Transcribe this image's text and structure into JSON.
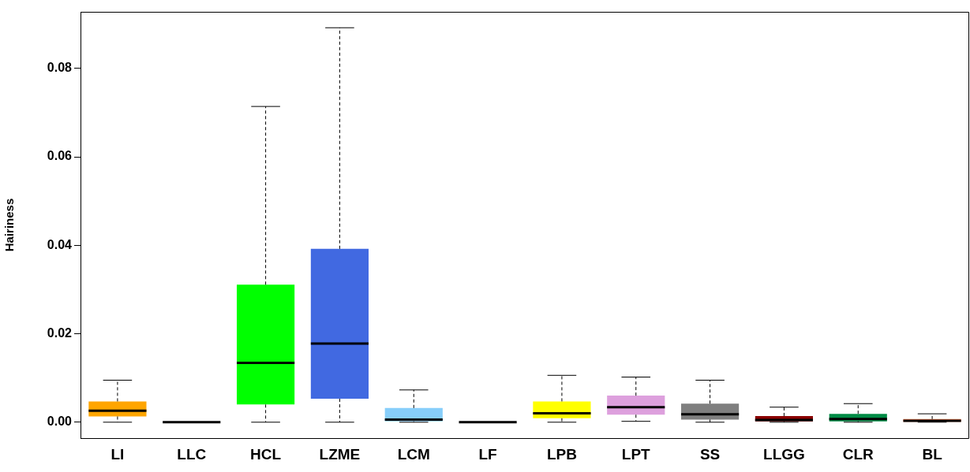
{
  "chart_data": {
    "type": "box",
    "ylabel": "Hairiness",
    "categories": [
      "LI",
      "LLC",
      "HCL",
      "LZME",
      "LCM",
      "LF",
      "LPB",
      "LPT",
      "SS",
      "LLGG",
      "CLR",
      "BL"
    ],
    "colors": [
      "#ffa500",
      "#000000",
      "#00ff00",
      "#4169e1",
      "#87cefa",
      "#000000",
      "#ffff00",
      "#dda0dd",
      "#7f7f7f",
      "#8b0000",
      "#008b45",
      "#ff7f50"
    ],
    "boxes": [
      {
        "low": 0,
        "q1": 0.0013,
        "median": 0.0026,
        "q3": 0.0047,
        "high": 0.0095
      },
      {
        "low": 0,
        "q1": 0,
        "median": 0,
        "q3": 0,
        "high": 0
      },
      {
        "low": 0,
        "q1": 0.004,
        "median": 0.0134,
        "q3": 0.0311,
        "high": 0.0714
      },
      {
        "low": 0,
        "q1": 0.0053,
        "median": 0.0178,
        "q3": 0.0392,
        "high": 0.0892
      },
      {
        "low": 0,
        "q1": 0.0002,
        "median": 0.0006,
        "q3": 0.0032,
        "high": 0.0073
      },
      {
        "low": 0,
        "q1": 0,
        "median": 0,
        "q3": 0,
        "high": 0
      },
      {
        "low": 0,
        "q1": 0.0009,
        "median": 0.002,
        "q3": 0.0047,
        "high": 0.0106
      },
      {
        "low": 0.0002,
        "q1": 0.0017,
        "median": 0.0034,
        "q3": 0.006,
        "high": 0.0102
      },
      {
        "low": 0,
        "q1": 0.0006,
        "median": 0.0018,
        "q3": 0.0042,
        "high": 0.0095
      },
      {
        "low": 0,
        "q1": 0.0002,
        "median": 0.0005,
        "q3": 0.0014,
        "high": 0.0034
      },
      {
        "low": 0,
        "q1": 0.0002,
        "median": 0.0007,
        "q3": 0.0019,
        "high": 0.0042
      },
      {
        "low": 0,
        "q1": 0,
        "median": 0.0003,
        "q3": 0.0007,
        "high": 0.0019
      }
    ],
    "ylim": [
      -0.0036,
      0.0928
    ],
    "yticks": [
      {
        "value": 0,
        "label": "0.00"
      },
      {
        "value": 0.02,
        "label": "0.02"
      },
      {
        "value": 0.04,
        "label": "0.04"
      },
      {
        "value": 0.06,
        "label": "0.06"
      },
      {
        "value": 0.08,
        "label": "0.08"
      }
    ]
  }
}
